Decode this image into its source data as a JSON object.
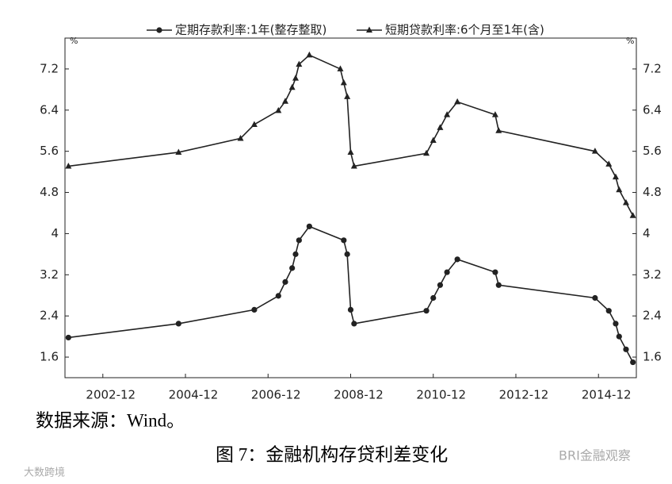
{
  "chart_data": {
    "type": "line",
    "y_unit": "%",
    "xlim": [
      "2002-01",
      "2015-11"
    ],
    "xticks": [
      "2002-12",
      "2004-12",
      "2006-12",
      "2008-12",
      "2010-12",
      "2012-12",
      "2014-12"
    ],
    "ylim": [
      1.2,
      7.8
    ],
    "yticks": [
      1.6,
      2.4,
      3.2,
      4.0,
      4.8,
      5.6,
      6.4,
      7.2
    ],
    "series": [
      {
        "name": "定期存款利率:1年(整存整取)",
        "color": "#222222",
        "marker": "circle",
        "x": [
          "2002-02",
          "2004-10",
          "2006-08",
          "2007-03",
          "2007-05",
          "2007-07",
          "2007-08",
          "2007-09",
          "2007-12",
          "2008-10",
          "2008-11",
          "2008-12",
          "2009-01",
          "2010-10",
          "2010-12",
          "2011-02",
          "2011-04",
          "2011-07",
          "2012-06",
          "2012-07",
          "2014-11",
          "2015-03",
          "2015-05",
          "2015-06",
          "2015-08",
          "2015-10"
        ],
        "values": [
          1.98,
          2.25,
          2.52,
          2.79,
          3.06,
          3.33,
          3.6,
          3.87,
          4.14,
          3.87,
          3.6,
          2.52,
          2.25,
          2.5,
          2.75,
          3.0,
          3.25,
          3.5,
          3.25,
          3.0,
          2.75,
          2.5,
          2.25,
          2.0,
          1.75,
          1.5
        ]
      },
      {
        "name": "短期贷款利率:6个月至1年(含)",
        "color": "#222222",
        "marker": "triangle",
        "x": [
          "2002-02",
          "2004-10",
          "2006-04",
          "2006-08",
          "2007-03",
          "2007-05",
          "2007-07",
          "2007-08",
          "2007-09",
          "2007-12",
          "2008-09",
          "2008-10",
          "2008-11",
          "2008-12",
          "2009-01",
          "2010-10",
          "2010-12",
          "2011-02",
          "2011-04",
          "2011-07",
          "2012-06",
          "2012-07",
          "2014-11",
          "2015-03",
          "2015-05",
          "2015-06",
          "2015-08",
          "2015-10"
        ],
        "values": [
          5.31,
          5.58,
          5.85,
          6.12,
          6.39,
          6.57,
          6.84,
          7.02,
          7.29,
          7.47,
          7.2,
          6.93,
          6.66,
          5.58,
          5.31,
          5.56,
          5.81,
          6.06,
          6.31,
          6.56,
          6.31,
          6.0,
          5.6,
          5.35,
          5.1,
          4.85,
          4.6,
          4.35
        ]
      }
    ]
  },
  "source": "数据来源：Wind。",
  "caption": "图 7：金融机构存贷利差变化",
  "watermarks": [
    "BRI金融观察",
    "大数跨境"
  ]
}
